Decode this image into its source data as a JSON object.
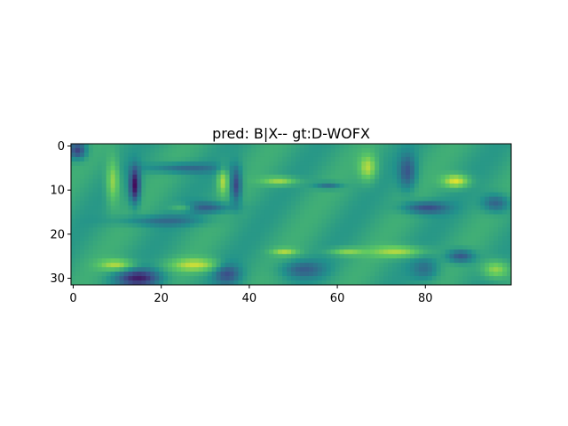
{
  "chart_data": {
    "type": "heatmap",
    "title": "pred: B|X-- gt:D-WOFX",
    "xlabel": "",
    "ylabel": "",
    "xlim": [
      -0.5,
      99.5
    ],
    "ylim": [
      31.5,
      -0.5
    ],
    "x_ticks": [
      0,
      20,
      40,
      60,
      80
    ],
    "y_ticks": [
      0,
      10,
      20,
      30
    ],
    "grid": false,
    "colormap": "viridis",
    "image_shape": [
      32,
      100
    ],
    "colors": {
      "frame": "#000000",
      "background": "#ffffff",
      "low": "#440154",
      "mid": "#21918c",
      "high": "#fde725"
    }
  }
}
